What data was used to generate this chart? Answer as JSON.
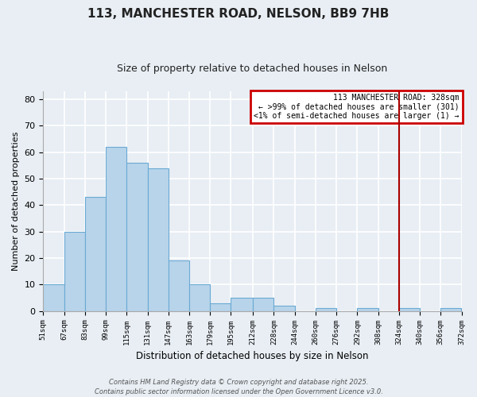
{
  "title": "113, MANCHESTER ROAD, NELSON, BB9 7HB",
  "subtitle": "Size of property relative to detached houses in Nelson",
  "xlabel": "Distribution of detached houses by size in Nelson",
  "ylabel": "Number of detached properties",
  "bar_color": "#b8d4ea",
  "bar_edge_color": "#6aaad4",
  "bins": [
    51,
    67,
    83,
    99,
    115,
    131,
    147,
    163,
    179,
    195,
    212,
    228,
    244,
    260,
    276,
    292,
    308,
    324,
    340,
    356,
    372
  ],
  "counts": [
    10,
    30,
    43,
    62,
    56,
    54,
    19,
    10,
    3,
    5,
    5,
    2,
    0,
    1,
    0,
    1,
    0,
    1,
    0,
    1
  ],
  "tick_labels": [
    "51sqm",
    "67sqm",
    "83sqm",
    "99sqm",
    "115sqm",
    "131sqm",
    "147sqm",
    "163sqm",
    "179sqm",
    "195sqm",
    "212sqm",
    "228sqm",
    "244sqm",
    "260sqm",
    "276sqm",
    "292sqm",
    "308sqm",
    "324sqm",
    "340sqm",
    "356sqm",
    "372sqm"
  ],
  "vline_x": 324,
  "vline_color": "#aa0000",
  "ylim": [
    0,
    83
  ],
  "yticks": [
    0,
    10,
    20,
    30,
    40,
    50,
    60,
    70,
    80
  ],
  "legend_title": "113 MANCHESTER ROAD: 328sqm",
  "legend_line1": "← >99% of detached houses are smaller (301)",
  "legend_line2": "<1% of semi-detached houses are larger (1) →",
  "legend_box_color": "#cc0000",
  "footnote1": "Contains HM Land Registry data © Crown copyright and database right 2025.",
  "footnote2": "Contains public sector information licensed under the Open Government Licence v3.0.",
  "bg_color": "#e8eef4",
  "grid_color": "#ffffff",
  "spine_color": "#aaaaaa"
}
